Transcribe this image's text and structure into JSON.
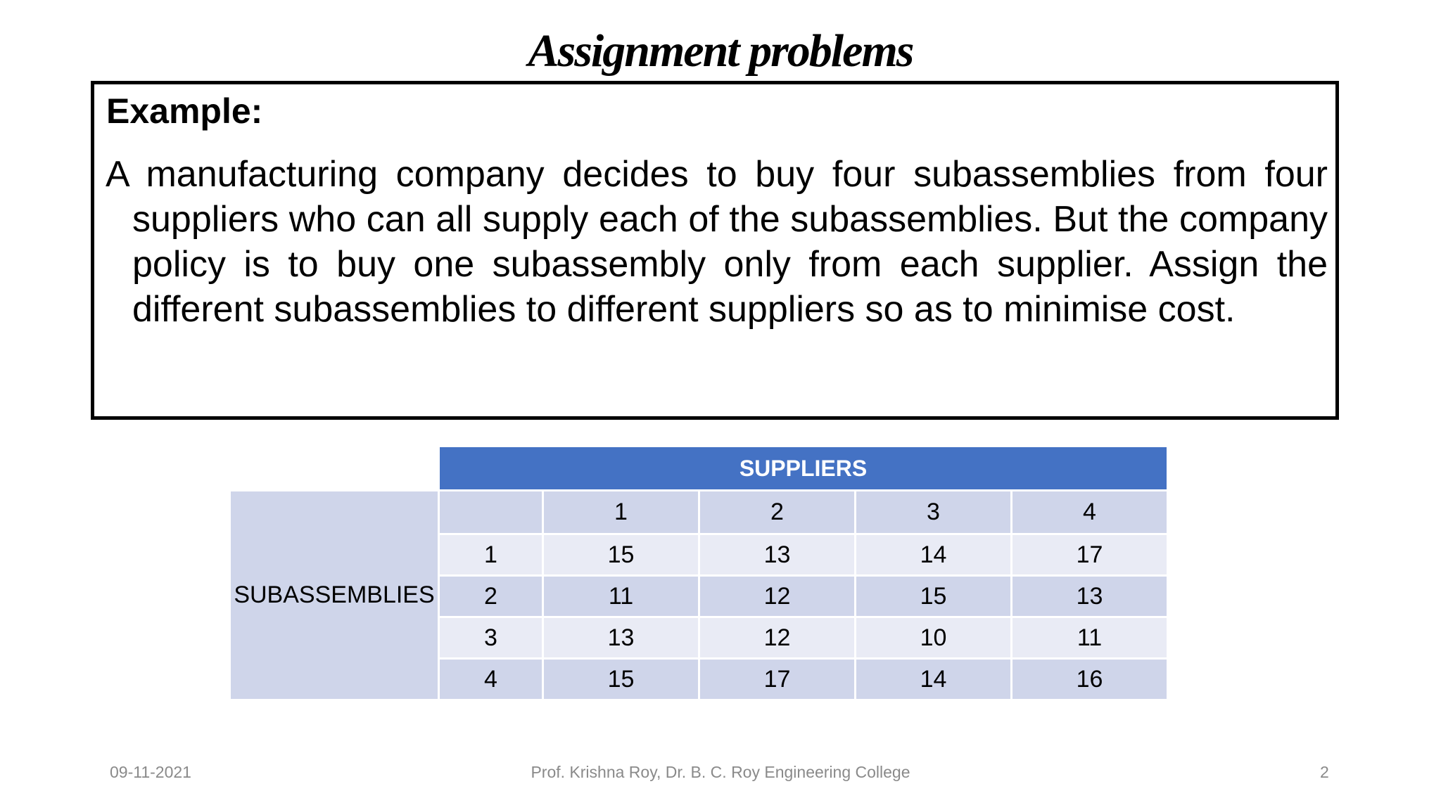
{
  "slide": {
    "title": "Assignment problems",
    "example_heading": "Example:",
    "example_text": "A manufacturing company decides to buy four subassemblies from four suppliers who can all supply each of the subassemblies. But the company policy is to buy one subassembly only from each supplier. Assign the different subassemblies to different suppliers so as to minimise cost."
  },
  "table": {
    "column_group_label": "SUPPLIERS",
    "row_group_label": "SUBASSEMBLIES",
    "columns": [
      "1",
      "2",
      "3",
      "4"
    ],
    "rows": [
      {
        "label": "1",
        "values": [
          "15",
          "13",
          "14",
          "17"
        ]
      },
      {
        "label": "2",
        "values": [
          "11",
          "12",
          "15",
          "13"
        ]
      },
      {
        "label": "3",
        "values": [
          "13",
          "12",
          "10",
          "11"
        ]
      },
      {
        "label": "4",
        "values": [
          "15",
          "17",
          "14",
          "16"
        ]
      }
    ]
  },
  "footer": {
    "date": "09-11-2021",
    "author": "Prof. Krishna Roy, Dr. B. C. Roy Engineering College",
    "page": "2"
  },
  "colors": {
    "header_blue": "#4472c4",
    "band_dark": "#cfd5ea",
    "band_light": "#e9ebf5"
  }
}
